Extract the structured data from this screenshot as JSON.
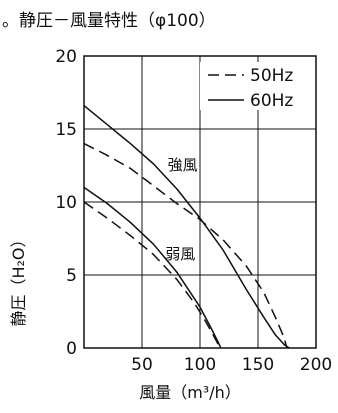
{
  "chart_data": {
    "type": "line",
    "title": "。静圧－風量特性（φ100）",
    "xlabel": "風量（m³/h）",
    "ylabel": "静圧（H₂O）",
    "xlim": [
      0,
      200
    ],
    "ylim": [
      0,
      20
    ],
    "x_ticks": [
      "50",
      "100",
      "150",
      "200"
    ],
    "y_ticks": [
      "0",
      "5",
      "10",
      "15",
      "20"
    ],
    "grid": true,
    "legend": {
      "position": "top-right",
      "entries": [
        {
          "label": "50Hz",
          "style": "dashed"
        },
        {
          "label": "60Hz",
          "style": "solid"
        }
      ]
    },
    "annotations": [
      {
        "text": "強風",
        "x": 85,
        "y": 12.2
      },
      {
        "text": "弱風",
        "x": 83,
        "y": 6.1
      }
    ],
    "series": [
      {
        "freq": "60Hz",
        "mode": "強風",
        "style": "solid",
        "x": [
          0,
          20,
          40,
          60,
          80,
          100,
          120,
          140,
          155,
          165,
          173,
          177
        ],
        "y": [
          16.6,
          15.3,
          14.0,
          12.6,
          10.9,
          8.9,
          6.7,
          4.0,
          2.1,
          0.9,
          0.2,
          0
        ]
      },
      {
        "freq": "50Hz",
        "mode": "強風",
        "style": "dashed",
        "x": [
          0,
          20,
          40,
          60,
          80,
          100,
          120,
          140,
          155,
          165,
          172,
          175
        ],
        "y": [
          14.0,
          13.2,
          12.3,
          11.1,
          9.9,
          8.8,
          7.4,
          5.6,
          3.8,
          2.1,
          0.8,
          0
        ]
      },
      {
        "freq": "60Hz",
        "mode": "弱風",
        "style": "solid",
        "x": [
          0,
          20,
          40,
          60,
          80,
          100,
          110,
          115,
          118
        ],
        "y": [
          11.0,
          9.9,
          8.6,
          7.1,
          5.2,
          2.8,
          1.3,
          0.5,
          0
        ]
      },
      {
        "freq": "50Hz",
        "mode": "弱風",
        "style": "dashed",
        "x": [
          0,
          20,
          40,
          60,
          80,
          95,
          105,
          112,
          116,
          118
        ],
        "y": [
          10.0,
          8.9,
          7.7,
          6.4,
          4.7,
          3.1,
          1.8,
          0.8,
          0.2,
          0
        ]
      }
    ]
  }
}
